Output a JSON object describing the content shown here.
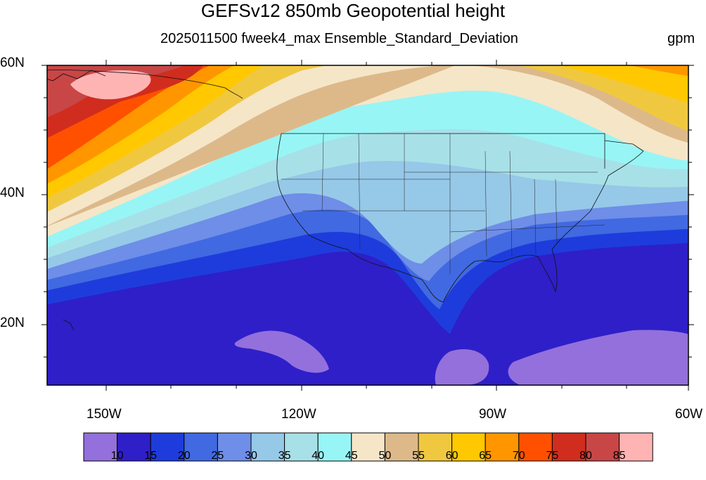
{
  "title": "GEFSv12 850mb Geopotential height",
  "subtitle": "2025011500 fweek4_max Ensemble_Standard_Deviation",
  "units": "gpm",
  "lat_labels": [
    "60N",
    "40N",
    "20N"
  ],
  "lon_labels": [
    "150W",
    "120W",
    "90W",
    "60W"
  ],
  "colorbar": {
    "colors": [
      "#9370db",
      "#2e1fc8",
      "#1e3cdc",
      "#4169e1",
      "#6e8ee8",
      "#96c8e8",
      "#a8e0e8",
      "#98f5f5",
      "#f5e6c8",
      "#ddb98a",
      "#f0c840",
      "#ffc800",
      "#ff9600",
      "#ff5000",
      "#d02d1e",
      "#c84646",
      "#ffb4b4"
    ],
    "labels": [
      "10",
      "15",
      "20",
      "25",
      "30",
      "35",
      "40",
      "45",
      "50",
      "55",
      "60",
      "65",
      "70",
      "75",
      "80",
      "85"
    ]
  }
}
